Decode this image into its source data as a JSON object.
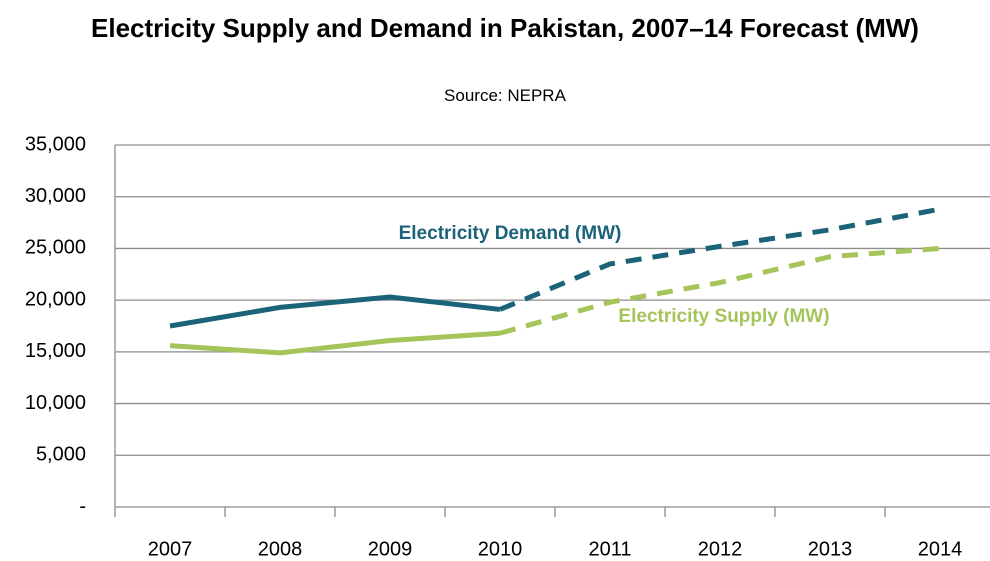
{
  "chart_data": {
    "type": "line",
    "title": "Electricity Supply and Demand in Pakistan, 2007–14 Forecast (MW)",
    "subtitle": "Source: NEPRA",
    "categories": [
      "2007",
      "2008",
      "2009",
      "2010",
      "2011",
      "2012",
      "2013",
      "2014"
    ],
    "series": [
      {
        "name": "Electricity Demand (MW)",
        "color": "#1a6378",
        "values": [
          17500,
          19300,
          20300,
          19100,
          23500,
          25200,
          26800,
          28800
        ]
      },
      {
        "name": "Electricity Supply (MW)",
        "color": "#a5c45a",
        "values": [
          15600,
          14900,
          16100,
          16800,
          19800,
          21700,
          24200,
          25000
        ]
      }
    ],
    "dashed_from_index": 3,
    "ylim": [
      0,
      35000
    ],
    "yticks": [
      {
        "value": 0,
        "label": "-"
      },
      {
        "value": 5000,
        "label": "5,000"
      },
      {
        "value": 10000,
        "label": "10,000"
      },
      {
        "value": 15000,
        "label": "15,000"
      },
      {
        "value": 20000,
        "label": "20,000"
      },
      {
        "value": 25000,
        "label": "25,000"
      },
      {
        "value": 30000,
        "label": "30,000"
      },
      {
        "value": 35000,
        "label": "35,000"
      }
    ],
    "grid": true
  }
}
